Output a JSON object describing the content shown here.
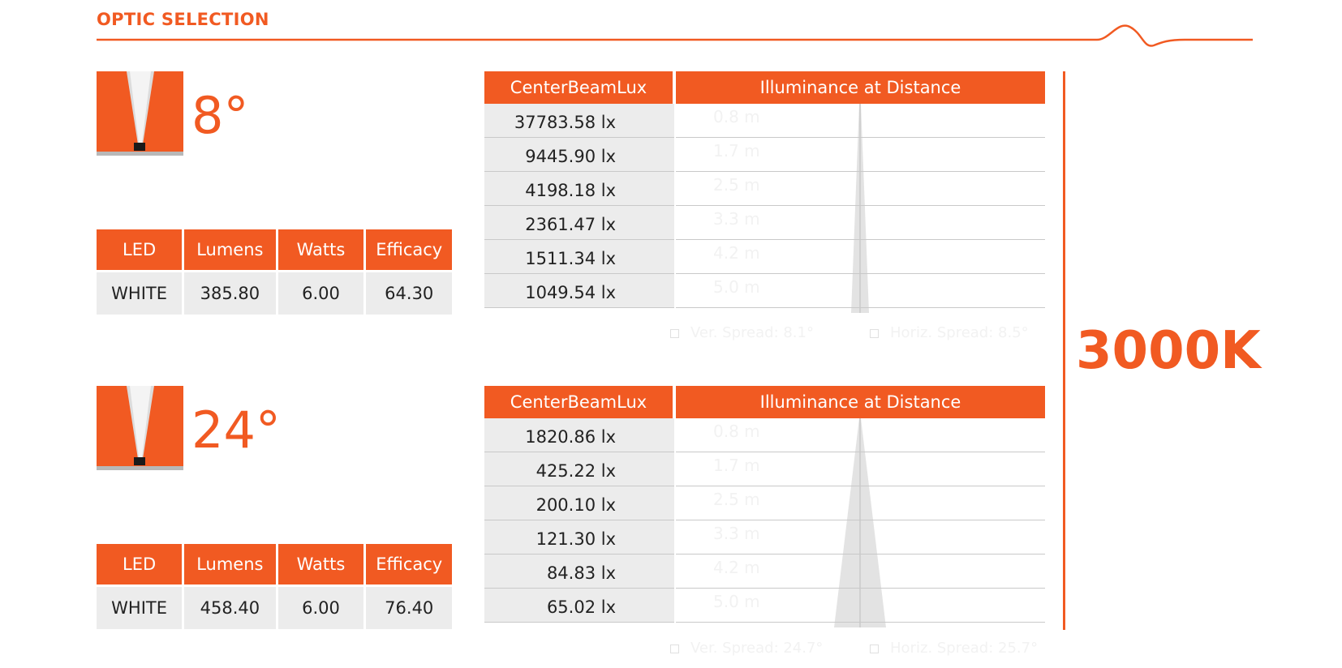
{
  "header": {
    "title": "OPTIC SELECTION"
  },
  "colors": {
    "accent": "#f15a22",
    "cell": "#ececec",
    "beam": "#e3e3e3"
  },
  "color_temperature": "3000K",
  "optics": [
    {
      "angle": "8°",
      "spec_headers": [
        "LED",
        "Lumens",
        "Watts",
        "Efficacy"
      ],
      "spec_values": [
        "WHITE",
        "385.80",
        "6.00",
        "64.30"
      ],
      "lux_header": "CenterBeamLux",
      "illum_header": "Illuminance at Distance",
      "lux_values": [
        "37783.58 lx",
        "9445.90 lx",
        "4198.18 lx",
        "2361.47 lx",
        "1511.34 lx",
        "1049.54 lx"
      ],
      "distances": [
        "0.8 m",
        "1.7 m",
        "2.5 m",
        "3.3 m",
        "4.2 m",
        "5.0 m"
      ],
      "ver_spread": "Ver. Spread: 8.1°",
      "horiz_spread": "Horiz. Spread: 8.5°"
    },
    {
      "angle": "24°",
      "spec_headers": [
        "LED",
        "Lumens",
        "Watts",
        "Efficacy"
      ],
      "spec_values": [
        "WHITE",
        "458.40",
        "6.00",
        "76.40"
      ],
      "lux_header": "CenterBeamLux",
      "illum_header": "Illuminance at Distance",
      "lux_values": [
        "1820.86 lx",
        "425.22 lx",
        "200.10 lx",
        "121.30 lx",
        "84.83 lx",
        "65.02 lx"
      ],
      "distances": [
        "0.8 m",
        "1.7 m",
        "2.5 m",
        "3.3 m",
        "4.2 m",
        "5.0 m"
      ],
      "ver_spread": "Ver. Spread: 24.7°",
      "horiz_spread": "Horiz. Spread: 25.7°"
    }
  ]
}
